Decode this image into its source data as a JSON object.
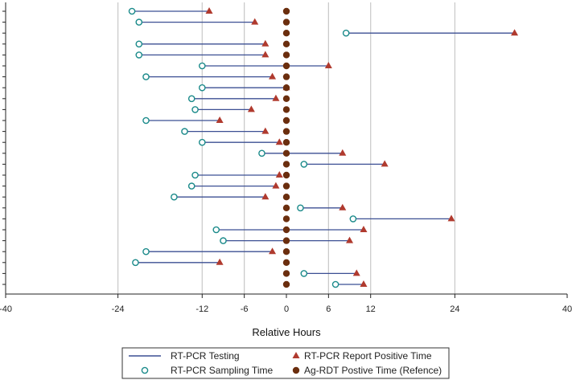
{
  "chart_data": {
    "type": "dumbbell",
    "xlabel": "Relative Hours",
    "xlim": [
      -40,
      40
    ],
    "xticks": [
      -40,
      -24,
      -12,
      -6,
      0,
      6,
      12,
      24,
      40
    ],
    "grid_x": [
      -24,
      -12,
      -6,
      6,
      12,
      24
    ],
    "rows": [
      {
        "sampling": -22,
        "report": -11
      },
      {
        "sampling": -21,
        "report": -4.5
      },
      {
        "sampling": 8.5,
        "report": 32.5
      },
      {
        "sampling": -21,
        "report": -3
      },
      {
        "sampling": -21,
        "report": -3
      },
      {
        "sampling": -12,
        "report": 6
      },
      {
        "sampling": -20,
        "report": -2
      },
      {
        "sampling": -12,
        "report": 0
      },
      {
        "sampling": -13.5,
        "report": -1.5
      },
      {
        "sampling": -13,
        "report": -5
      },
      {
        "sampling": -20,
        "report": -9.5
      },
      {
        "sampling": -14.5,
        "report": -3
      },
      {
        "sampling": -12,
        "report": -1
      },
      {
        "sampling": -3.5,
        "report": 8
      },
      {
        "sampling": 2.5,
        "report": 14
      },
      {
        "sampling": -13,
        "report": -1
      },
      {
        "sampling": -13.5,
        "report": -1.5
      },
      {
        "sampling": -16,
        "report": -3
      },
      {
        "sampling": 2,
        "report": 8
      },
      {
        "sampling": 9.5,
        "report": 23.5
      },
      {
        "sampling": -10,
        "report": 11
      },
      {
        "sampling": -9,
        "report": 9
      },
      {
        "sampling": -20,
        "report": -2
      },
      {
        "sampling": -21.5,
        "report": -9.5
      },
      {
        "sampling": 2.5,
        "report": 10
      },
      {
        "sampling": 7,
        "report": 11
      }
    ],
    "reference_x": 0,
    "legend": [
      {
        "label": "RT-PCR Testing",
        "symbol": "line"
      },
      {
        "label": "RT-PCR Sampling Time",
        "symbol": "hollow-circle"
      },
      {
        "label": "RT-PCR Report Positive Time",
        "symbol": "triangle"
      },
      {
        "label": "Ag-RDT Postive Time (Refence)",
        "symbol": "filled-circle"
      }
    ],
    "legend_position": "bottom",
    "colors": {
      "line": "#3b4f93",
      "sampling": "#1a8a8a",
      "report": "#b03a2e",
      "reference": "#6b2e0e",
      "grid": "#c8c8c8"
    }
  }
}
